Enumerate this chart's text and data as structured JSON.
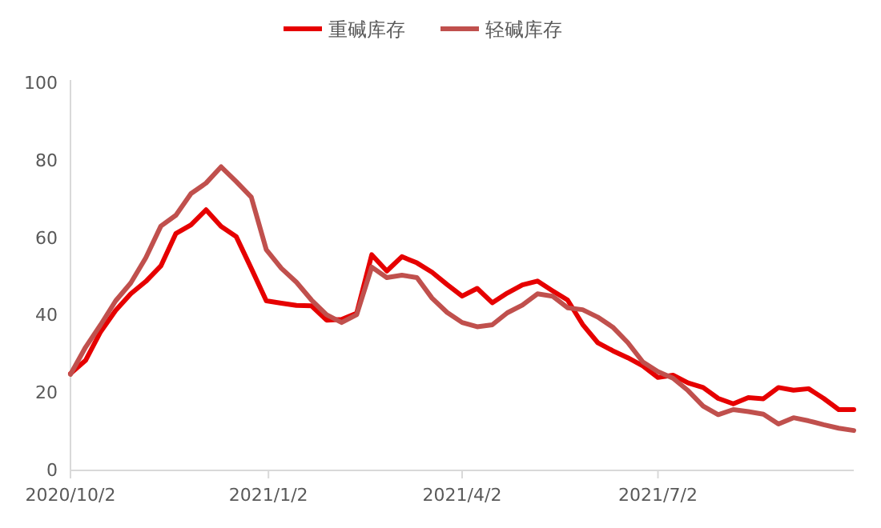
{
  "chart_data": {
    "type": "line",
    "legend": "top",
    "grid": false,
    "marker": "none",
    "line_style": "solid",
    "x": [
      "2020-10-02",
      "2020-10-09",
      "2020-10-16",
      "2020-10-23",
      "2020-10-30",
      "2020-11-06",
      "2020-11-13",
      "2020-11-20",
      "2020-11-27",
      "2020-12-04",
      "2020-12-11",
      "2020-12-18",
      "2020-12-25",
      "2021-01-01",
      "2021-01-08",
      "2021-01-15",
      "2021-01-22",
      "2021-01-29",
      "2021-02-05",
      "2021-02-12",
      "2021-02-19",
      "2021-02-26",
      "2021-03-05",
      "2021-03-12",
      "2021-03-19",
      "2021-03-26",
      "2021-04-02",
      "2021-04-09",
      "2021-04-16",
      "2021-04-23",
      "2021-04-30",
      "2021-05-07",
      "2021-05-14",
      "2021-05-21",
      "2021-05-28",
      "2021-06-04",
      "2021-06-11",
      "2021-06-18",
      "2021-06-25",
      "2021-07-02",
      "2021-07-09",
      "2021-07-16",
      "2021-07-23",
      "2021-07-30",
      "2021-08-06",
      "2021-08-13",
      "2021-08-20",
      "2021-08-27",
      "2021-09-03",
      "2021-09-10",
      "2021-09-17",
      "2021-09-24",
      "2021-10-01"
    ],
    "series": [
      {
        "name": "重碱库存",
        "color": "#e60000",
        "values": [
          25,
          28.4,
          35.8,
          41.3,
          45.6,
          48.8,
          52.8,
          61.2,
          63.4,
          67.3,
          63,
          60.4,
          52.2,
          43.8,
          43.2,
          42.6,
          42.5,
          38.8,
          39,
          40.6,
          55.7,
          51.5,
          55.2,
          53.6,
          51.2,
          48,
          45,
          47,
          43.3,
          45.8,
          47.9,
          48.9,
          46.4,
          44,
          37.7,
          33,
          30.9,
          29.1,
          27,
          24,
          24.6,
          22.6,
          21.4,
          18.6,
          17.2,
          18.8,
          18.5,
          21.4,
          20.7,
          21.1,
          18.6,
          15.7,
          15.7
        ]
      },
      {
        "name": "轻碱库存",
        "color": "#c0504d",
        "values": [
          24.8,
          31.8,
          37.6,
          43.8,
          48.4,
          54.9,
          63.1,
          65.9,
          71.5,
          74.2,
          78.4,
          74.6,
          70.6,
          57,
          52.2,
          48.6,
          44,
          40.2,
          38.2,
          40.2,
          52.5,
          49.8,
          50.4,
          49.8,
          44.5,
          40.8,
          38.2,
          37.1,
          37.6,
          40.7,
          42.7,
          45.6,
          45,
          42,
          41.5,
          39.6,
          37,
          33,
          28,
          25.5,
          23.8,
          20.6,
          16.6,
          14.4,
          15.7,
          15.2,
          14.5,
          12,
          13.6,
          12.8,
          11.8,
          10.9,
          10.3
        ]
      }
    ],
    "xlim": [
      "2020-10-02",
      "2021-10-01"
    ],
    "xticks": [
      {
        "value": "2020-10-02",
        "label": "2020/10/2"
      },
      {
        "value": "2021-01-02",
        "label": "2021/1/2"
      },
      {
        "value": "2021-04-02",
        "label": "2021/4/2"
      },
      {
        "value": "2021-07-02",
        "label": "2021/7/2"
      }
    ],
    "ylim": [
      0,
      100
    ],
    "yticks": [
      0,
      20,
      40,
      60,
      80,
      100
    ]
  }
}
